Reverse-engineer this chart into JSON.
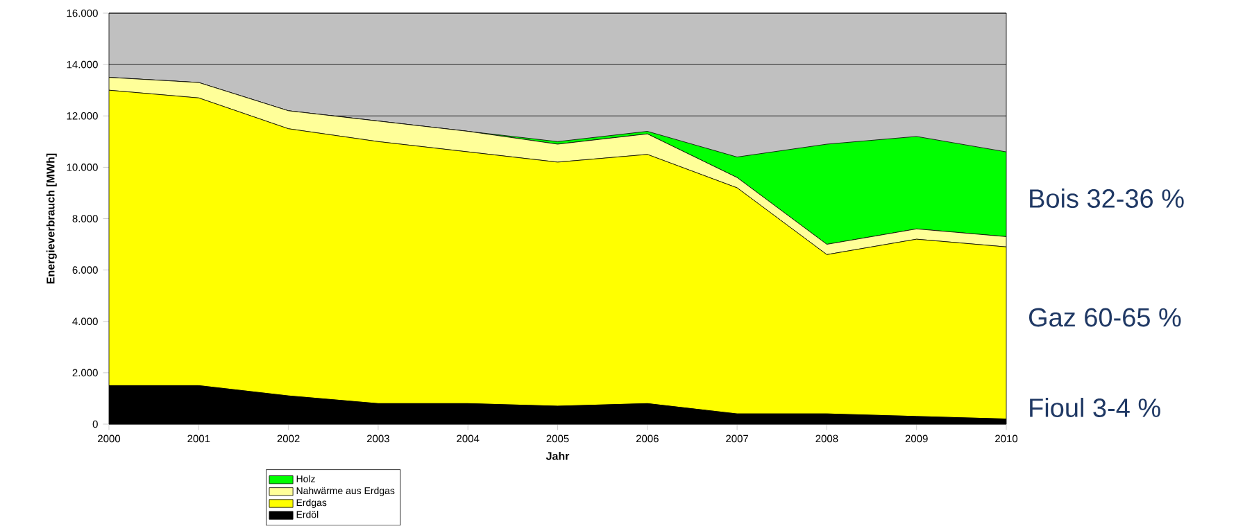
{
  "chart_data": {
    "type": "area",
    "stacked": true,
    "xlabel": "Jahr",
    "ylabel": "Energieverbrauch [MWh]",
    "x": [
      2000,
      2001,
      2002,
      2003,
      2004,
      2005,
      2006,
      2007,
      2008,
      2009,
      2010
    ],
    "series": [
      {
        "name": "Erdöl",
        "color": "#000000",
        "values": [
          1500,
          1500,
          1100,
          800,
          800,
          700,
          800,
          400,
          400,
          300,
          200
        ]
      },
      {
        "name": "Erdgas",
        "color": "#ffff00",
        "values": [
          11500,
          11200,
          10400,
          10200,
          9800,
          9500,
          9700,
          8800,
          6200,
          6900,
          6700
        ]
      },
      {
        "name": "Nahwärme aus Erdgas",
        "color": "#ffff99",
        "values": [
          500,
          600,
          700,
          800,
          800,
          700,
          800,
          400,
          400,
          400,
          400
        ]
      },
      {
        "name": "Holz",
        "color": "#00ff00",
        "values": [
          0,
          0,
          0,
          0,
          0,
          100,
          100,
          800,
          3900,
          3600,
          3300
        ]
      }
    ],
    "xlim": [
      2000,
      2010
    ],
    "xticks": [
      2000,
      2001,
      2002,
      2003,
      2004,
      2005,
      2006,
      2007,
      2008,
      2009,
      2010
    ],
    "ylim": [
      0,
      16000
    ],
    "yticks": [
      {
        "value": 0,
        "label": "0"
      },
      {
        "value": 2000,
        "label": "2.000"
      },
      {
        "value": 4000,
        "label": "4.000"
      },
      {
        "value": 6000,
        "label": "6.000"
      },
      {
        "value": 8000,
        "label": "8.000"
      },
      {
        "value": 10000,
        "label": "10.000"
      },
      {
        "value": 12000,
        "label": "12.000"
      },
      {
        "value": 14000,
        "label": "14.000"
      },
      {
        "value": 16000,
        "label": "16.000"
      }
    ],
    "grid": "y",
    "legend": "bottom",
    "annotations": [
      "Bois 32-36 %",
      "Gaz 60-65 %",
      "Fioul 3-4 %"
    ]
  }
}
